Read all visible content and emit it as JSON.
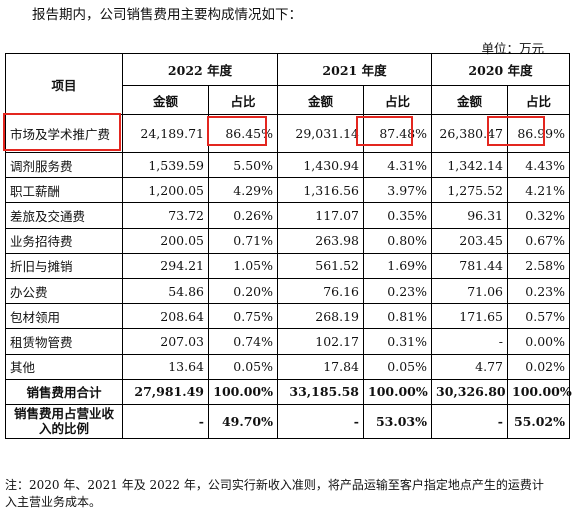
{
  "intro": "报告期内，公司销售费用主要构成情况如下：",
  "unit": "单位：万元",
  "table": {
    "item_header": "项目",
    "years": [
      "2022 年度",
      "2021 年度",
      "2020 年度"
    ],
    "sub_headers": {
      "amount": "金额",
      "ratio": "占比"
    },
    "rows": [
      {
        "label": "市场及学术推广费",
        "v": [
          "24,189.71",
          "86.45%",
          "29,031.14",
          "87.48%",
          "26,380.47",
          "86.99%"
        ]
      },
      {
        "label": "调剂服务费",
        "v": [
          "1,539.59",
          "5.50%",
          "1,430.94",
          "4.31%",
          "1,342.14",
          "4.43%"
        ]
      },
      {
        "label": "职工薪酬",
        "v": [
          "1,200.05",
          "4.29%",
          "1,316.56",
          "3.97%",
          "1,275.52",
          "4.21%"
        ]
      },
      {
        "label": "差旅及交通费",
        "v": [
          "73.72",
          "0.26%",
          "117.07",
          "0.35%",
          "96.31",
          "0.32%"
        ]
      },
      {
        "label": "业务招待费",
        "v": [
          "200.05",
          "0.71%",
          "263.98",
          "0.80%",
          "203.45",
          "0.67%"
        ]
      },
      {
        "label": "折旧与摊销",
        "v": [
          "294.21",
          "1.05%",
          "561.52",
          "1.69%",
          "781.44",
          "2.58%"
        ]
      },
      {
        "label": "办公费",
        "v": [
          "54.86",
          "0.20%",
          "76.16",
          "0.23%",
          "71.06",
          "0.23%"
        ]
      },
      {
        "label": "包材领用",
        "v": [
          "208.64",
          "0.75%",
          "268.19",
          "0.81%",
          "171.65",
          "0.57%"
        ]
      },
      {
        "label": "租赁物管费",
        "v": [
          "207.03",
          "0.74%",
          "102.17",
          "0.31%",
          "-",
          "0.00%"
        ]
      },
      {
        "label": "其他",
        "v": [
          "13.64",
          "0.05%",
          "17.84",
          "0.05%",
          "4.77",
          "0.02%"
        ]
      }
    ],
    "total": {
      "label": "销售费用合计",
      "v": [
        "27,981.49",
        "100.00%",
        "33,185.58",
        "100.00%",
        "30,326.80",
        "100.00%"
      ]
    },
    "ratio_row": {
      "label": "销售费用占营业收入的比例",
      "v": [
        "-",
        "49.70%",
        "-",
        "53.03%",
        "-",
        "55.02%"
      ]
    }
  },
  "highlight_color": "#e3261f",
  "note": "注：2020 年、2021 年及 2022 年，公司实行新收入准则，将产品运输至客户指定地点产生的运费计入主营业务成本。"
}
